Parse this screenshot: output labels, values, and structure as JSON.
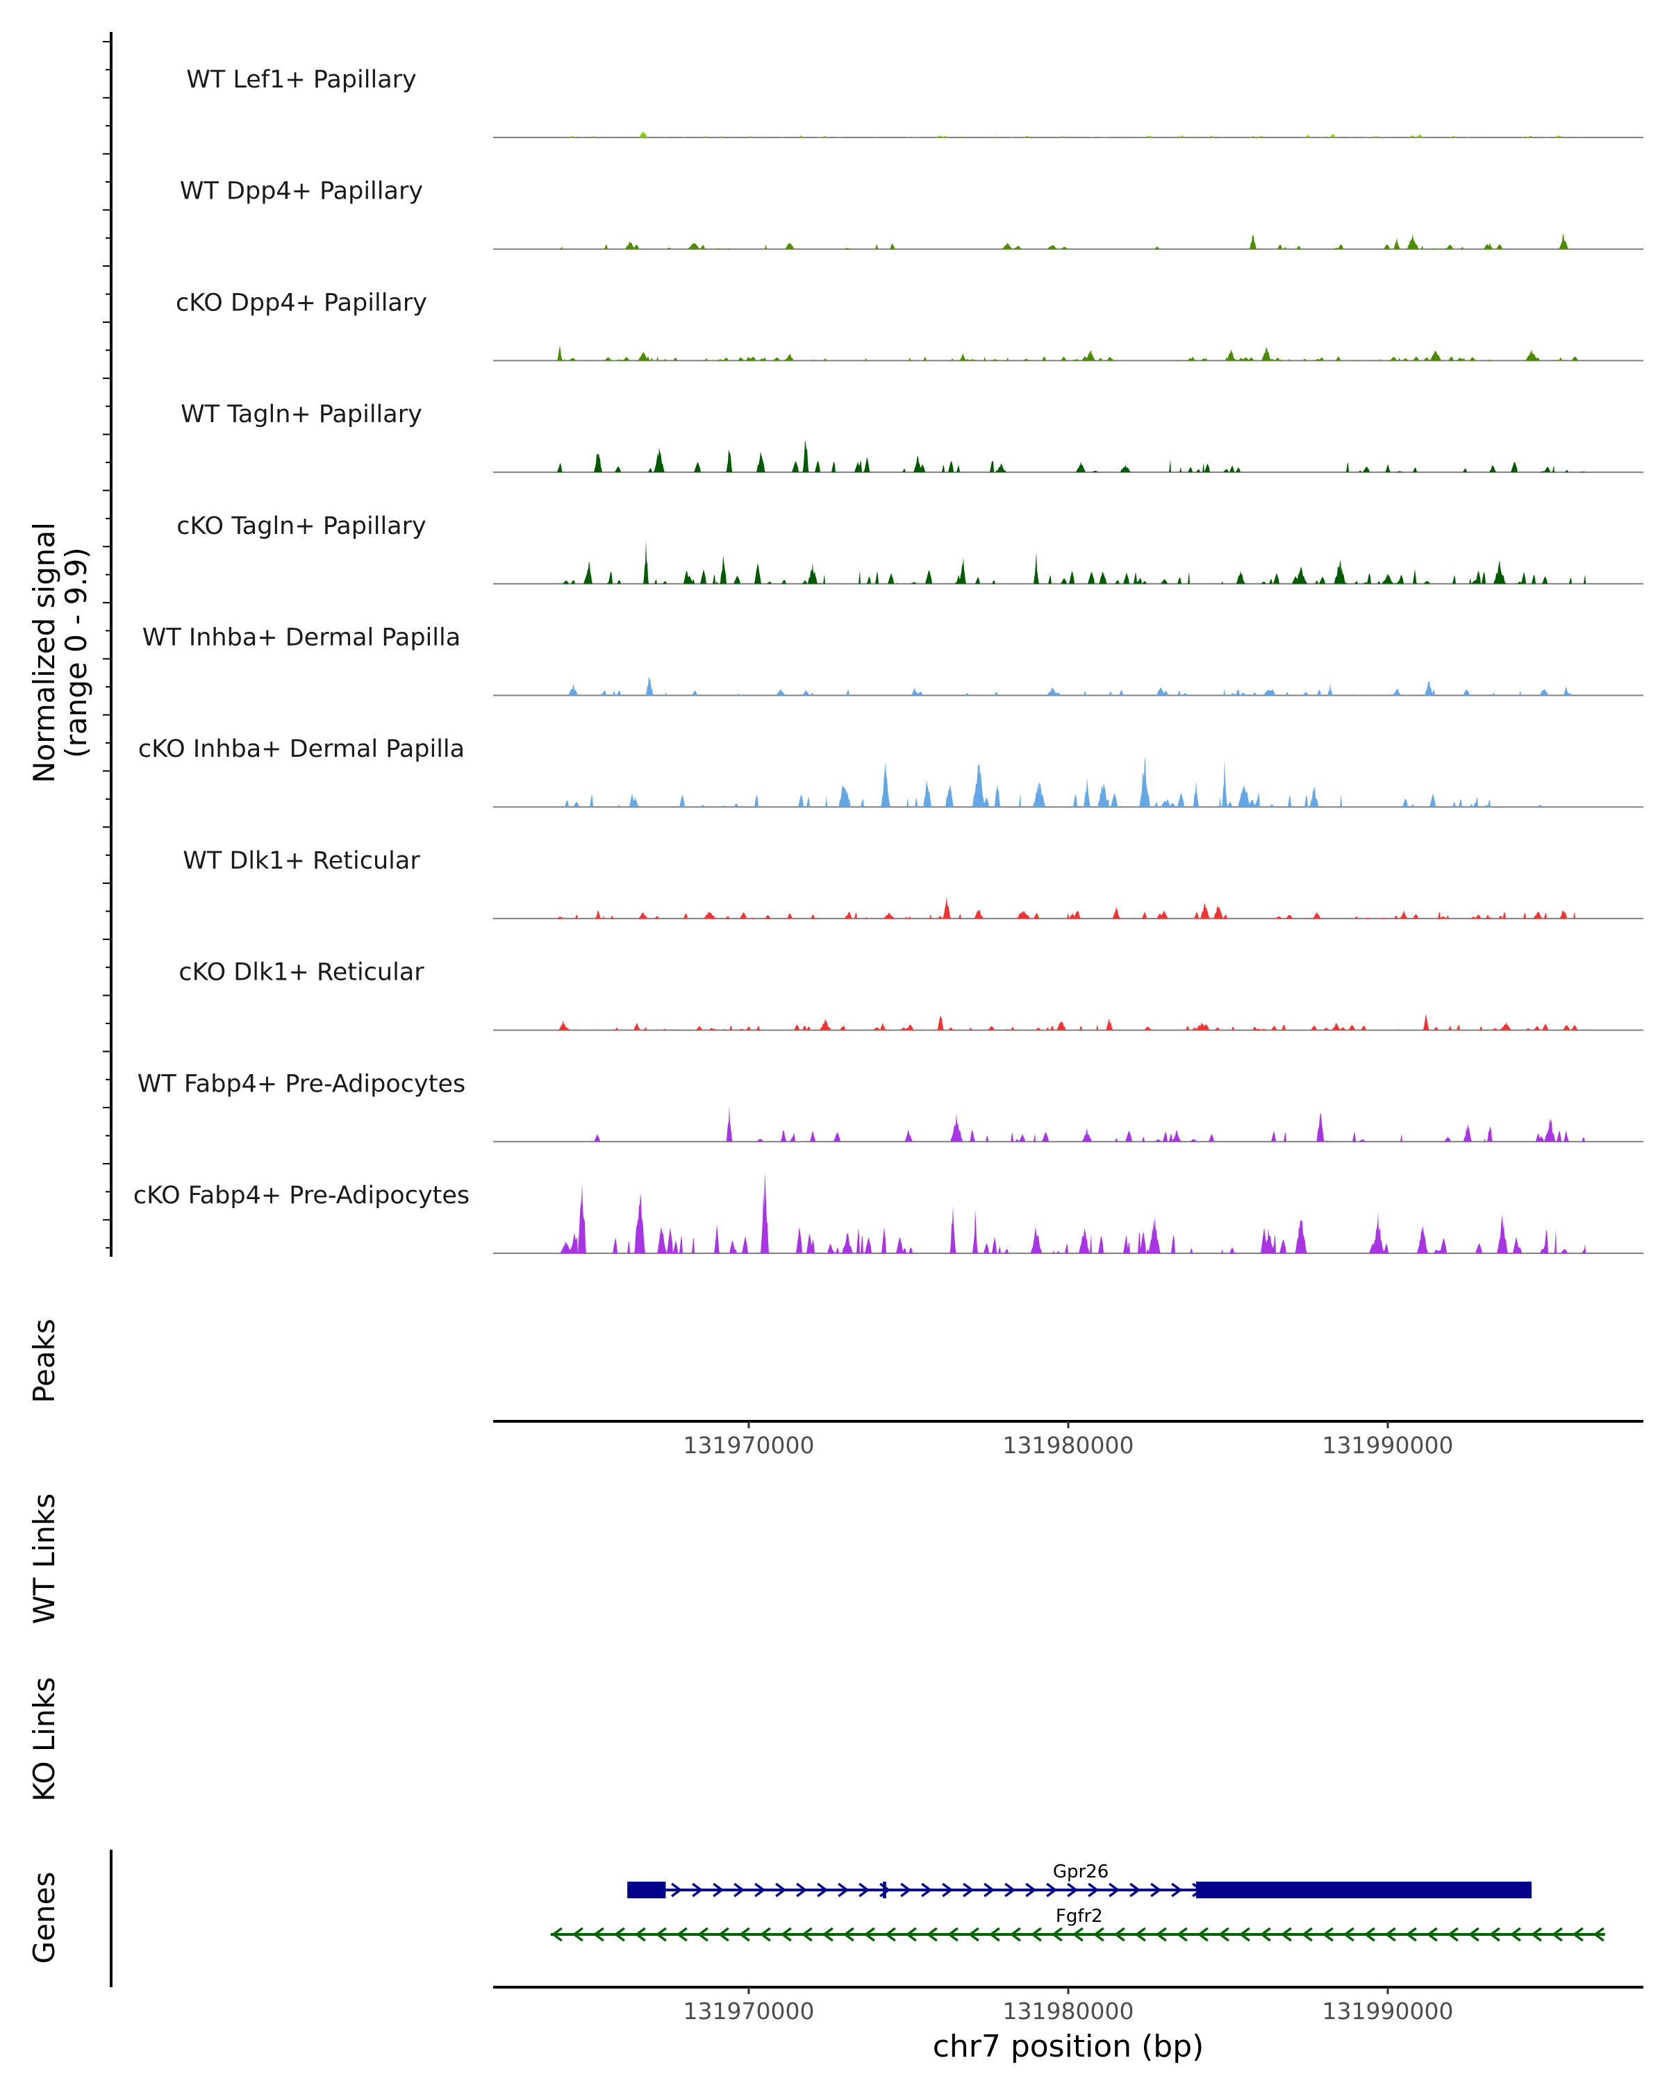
{
  "chart_data": {
    "type": "area",
    "title": "",
    "xlabel": "chr7 position (bp)",
    "ylabel": "Normalized signal",
    "ylabel_range": "(range 0 - 9.9)",
    "ylim": [
      0,
      9.9
    ],
    "xlim": [
      131962000,
      131998000
    ],
    "x_ticks": [
      131970000,
      131980000,
      131990000
    ],
    "x_tick_labels": [
      "131970000",
      "131980000",
      "131990000"
    ],
    "tracks": [
      {
        "name": "WT Lef1+ Papillary",
        "color": "#7FD200",
        "density": 0.55,
        "max": 0.8,
        "peaks": [
          [
            131966700,
            0.8
          ],
          [
            131976000,
            0.25
          ],
          [
            131987500,
            0.4
          ],
          [
            131988300,
            0.5
          ],
          [
            131991000,
            0.35
          ]
        ]
      },
      {
        "name": "WT Dpp4+ Papillary",
        "color": "#4D8C00",
        "density": 0.15,
        "max": 2.0,
        "peaks": [
          [
            131966300,
            1.0
          ],
          [
            131968300,
            0.8
          ],
          [
            131971300,
            0.9
          ],
          [
            131974500,
            0.9
          ],
          [
            131978100,
            0.7
          ],
          [
            131979500,
            0.7
          ],
          [
            131985800,
            2.0
          ],
          [
            131990300,
            1.3
          ],
          [
            131990800,
            1.8
          ],
          [
            131993200,
            0.7
          ],
          [
            131995500,
            1.8
          ]
        ]
      },
      {
        "name": "cKO Dpp4+ Papillary",
        "color": "#4B8B00",
        "density": 0.5,
        "max": 1.7,
        "peaks": [
          [
            131964100,
            1.7
          ],
          [
            131966700,
            1.2
          ],
          [
            131971300,
            1.0
          ],
          [
            131976700,
            0.8
          ],
          [
            131980700,
            1.3
          ],
          [
            131985100,
            1.4
          ],
          [
            131986200,
            1.7
          ],
          [
            131991500,
            1.2
          ],
          [
            131994500,
            1.3
          ]
        ]
      },
      {
        "name": "WT Tagln+ Papillary",
        "color": "#005A00",
        "density": 0.22,
        "max": 4.8,
        "peaks": [
          [
            131964100,
            1.4
          ],
          [
            131965300,
            2.8
          ],
          [
            131967200,
            2.8
          ],
          [
            131969400,
            3.3
          ],
          [
            131970400,
            2.9
          ],
          [
            131971800,
            4.8
          ],
          [
            131973700,
            2.3
          ],
          [
            131975300,
            2.2
          ],
          [
            131977900,
            1.0
          ],
          [
            131980400,
            1.2
          ],
          [
            131981800,
            1.0
          ],
          [
            131990000,
            1.0
          ],
          [
            131993300,
            1.0
          ]
        ]
      },
      {
        "name": "cKO Tagln+ Papillary",
        "color": "#005A00",
        "density": 0.45,
        "max": 5.4,
        "peaks": [
          [
            131965000,
            2.5
          ],
          [
            131966800,
            5.4
          ],
          [
            131969200,
            3.4
          ],
          [
            131970300,
            2.6
          ],
          [
            131972000,
            2.3
          ],
          [
            131976700,
            3.6
          ],
          [
            131979000,
            3.3
          ],
          [
            131981100,
            2.0
          ],
          [
            131985400,
            1.6
          ],
          [
            131987300,
            1.8
          ],
          [
            131988500,
            2.9
          ],
          [
            131990000,
            1.2
          ],
          [
            131993500,
            2.5
          ]
        ]
      },
      {
        "name": "WT Inhba+ Dermal Papilla",
        "color": "#63A7E6",
        "density": 0.2,
        "max": 2.5,
        "peaks": [
          [
            131964500,
            1.2
          ],
          [
            131966900,
            2.5
          ],
          [
            131971000,
            0.8
          ],
          [
            131975200,
            0.9
          ],
          [
            131979500,
            1.0
          ],
          [
            131982900,
            1.2
          ],
          [
            131986300,
            0.8
          ],
          [
            131988200,
            1.3
          ],
          [
            131990300,
            1.0
          ],
          [
            131991300,
            1.8
          ],
          [
            131994900,
            1.0
          ],
          [
            131995600,
            1.0
          ]
        ]
      },
      {
        "name": "cKO Inhba+ Dermal Papilla",
        "color": "#63A7E6",
        "density": 0.28,
        "max": 5.6,
        "peaks": [
          [
            131973000,
            3.4
          ],
          [
            131974300,
            5.0
          ],
          [
            131975600,
            3.5
          ],
          [
            131976300,
            3.2
          ],
          [
            131977200,
            5.6
          ],
          [
            131977800,
            3.5
          ],
          [
            131979100,
            3.3
          ],
          [
            131980600,
            3.3
          ],
          [
            131981100,
            3.2
          ],
          [
            131982400,
            5.6
          ],
          [
            131984000,
            3.0
          ],
          [
            131984900,
            5.0
          ],
          [
            131985500,
            3.2
          ],
          [
            131987700,
            2.5
          ]
        ]
      },
      {
        "name": "WT Dlk1+ Reticular",
        "color": "#EF3434",
        "density": 0.3,
        "max": 2.9,
        "peaks": [
          [
            131965300,
            0.9
          ],
          [
            131966700,
            0.8
          ],
          [
            131968800,
            0.9
          ],
          [
            131971300,
            0.9
          ],
          [
            131974400,
            0.8
          ],
          [
            131976200,
            2.9
          ],
          [
            131977200,
            1.3
          ],
          [
            131978600,
            1.2
          ],
          [
            131980300,
            1.3
          ],
          [
            131981500,
            1.5
          ],
          [
            131983000,
            1.0
          ],
          [
            131984300,
            2.0
          ],
          [
            131984700,
            1.6
          ],
          [
            131987800,
            0.9
          ],
          [
            131990500,
            0.9
          ],
          [
            131994700,
            0.9
          ],
          [
            131995500,
            1.2
          ]
        ]
      },
      {
        "name": "cKO Dlk1+ Reticular",
        "color": "#EF3434",
        "density": 0.6,
        "max": 2.4,
        "peaks": [
          [
            131964200,
            1.0
          ],
          [
            131966500,
            1.0
          ],
          [
            131972400,
            1.2
          ],
          [
            131974200,
            1.0
          ],
          [
            131976000,
            2.4
          ],
          [
            131979800,
            1.5
          ],
          [
            131981300,
            1.6
          ],
          [
            131984200,
            1.0
          ],
          [
            131988400,
            1.0
          ],
          [
            131991200,
            1.9
          ],
          [
            131993700,
            1.0
          ]
        ]
      },
      {
        "name": "WT Fabp4+ Pre-Adipocytes",
        "color": "#A934E4",
        "density": 0.18,
        "max": 4.3,
        "peaks": [
          [
            131969400,
            4.3
          ],
          [
            131971100,
            1.4
          ],
          [
            131972000,
            1.5
          ],
          [
            131975000,
            1.3
          ],
          [
            131976500,
            3.0
          ],
          [
            131977000,
            2.0
          ],
          [
            131980600,
            1.4
          ],
          [
            131983400,
            1.3
          ],
          [
            131987900,
            4.0
          ],
          [
            131992500,
            2.3
          ],
          [
            131993200,
            2.6
          ],
          [
            131995100,
            2.9
          ],
          [
            131995600,
            1.5
          ]
        ]
      },
      {
        "name": "cKO Fabp4+ Pre-Adipocytes",
        "color": "#A934E4",
        "density": 0.32,
        "max": 9.9,
        "peaks": [
          [
            131964300,
            1.5
          ],
          [
            131964800,
            9.9
          ],
          [
            131966600,
            7.8
          ],
          [
            131967300,
            3.5
          ],
          [
            131969000,
            4.1
          ],
          [
            131970500,
            9.9
          ],
          [
            131973100,
            2.5
          ],
          [
            131976400,
            5.8
          ],
          [
            131977100,
            4.7
          ],
          [
            131979000,
            3.4
          ],
          [
            131980500,
            3.0
          ],
          [
            131982700,
            4.5
          ],
          [
            131986300,
            3.0
          ],
          [
            131987300,
            4.3
          ],
          [
            131989700,
            4.4
          ],
          [
            131991100,
            3.3
          ],
          [
            131993600,
            4.4
          ]
        ]
      }
    ],
    "other_tracks": {
      "peaks": "Peaks",
      "wt_links": "WT Links",
      "ko_links": "KO Links",
      "genes": "Genes"
    },
    "genes": [
      {
        "name": "Gpr26",
        "start": 131966200,
        "end": 131994500,
        "strand": "+",
        "color": "#00008B",
        "exons": [
          [
            131966200,
            131967400
          ],
          [
            131974200,
            131974300
          ],
          [
            131984000,
            131994500
          ]
        ]
      },
      {
        "name": "Fgfr2",
        "start": 131963800,
        "end": 131996800,
        "strand": "-",
        "color": "#006400"
      }
    ]
  }
}
